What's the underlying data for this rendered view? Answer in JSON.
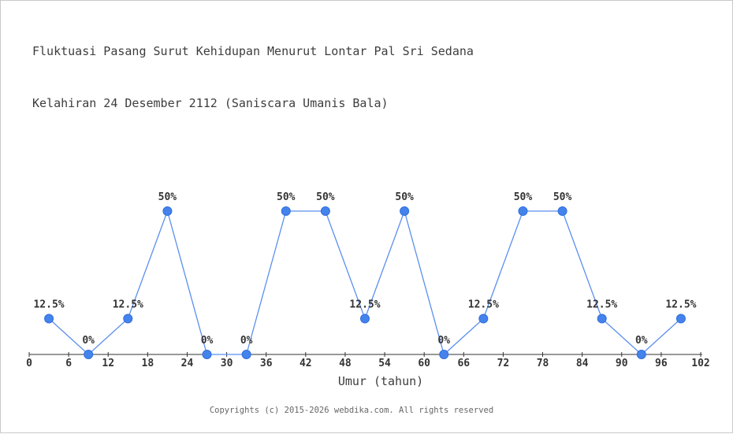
{
  "title": {
    "line1": "Fluktuasi Pasang Surut Kehidupan Menurut Lontar Pal Sri Sedana",
    "line2": "Kelahiran 24 Desember 2112 (Saniscara Umanis Bala)"
  },
  "chart_data": {
    "type": "line",
    "x": [
      3,
      9,
      15,
      21,
      27,
      33,
      39,
      45,
      51,
      57,
      63,
      69,
      75,
      81,
      87,
      93,
      99
    ],
    "values": [
      12.5,
      0,
      12.5,
      50,
      0,
      0,
      50,
      50,
      12.5,
      50,
      0,
      12.5,
      50,
      50,
      12.5,
      0,
      12.5
    ],
    "point_labels": [
      "12.5%",
      "0%",
      "12.5%",
      "50%",
      "0%",
      "0%",
      "50%",
      "50%",
      "12.5%",
      "50%",
      "0%",
      "12.5%",
      "50%",
      "50%",
      "12.5%",
      "0%",
      "12.5%"
    ],
    "x_ticks": [
      0,
      6,
      12,
      18,
      24,
      30,
      36,
      42,
      48,
      54,
      60,
      66,
      72,
      78,
      84,
      90,
      96,
      102
    ],
    "xlim": [
      0,
      102
    ],
    "ylim": [
      0,
      100
    ],
    "xlabel": "Umur (tahun)",
    "grid": false,
    "legend": null,
    "colors": {
      "point_fill": "#4583ec",
      "point_stroke": "#2f6fdd",
      "line": "#5b8fee",
      "axis": "#333333",
      "label": "#333333"
    }
  },
  "footer": {
    "copyright": "Copyrights (c) 2015-2026 webdika.com. All rights reserved"
  }
}
